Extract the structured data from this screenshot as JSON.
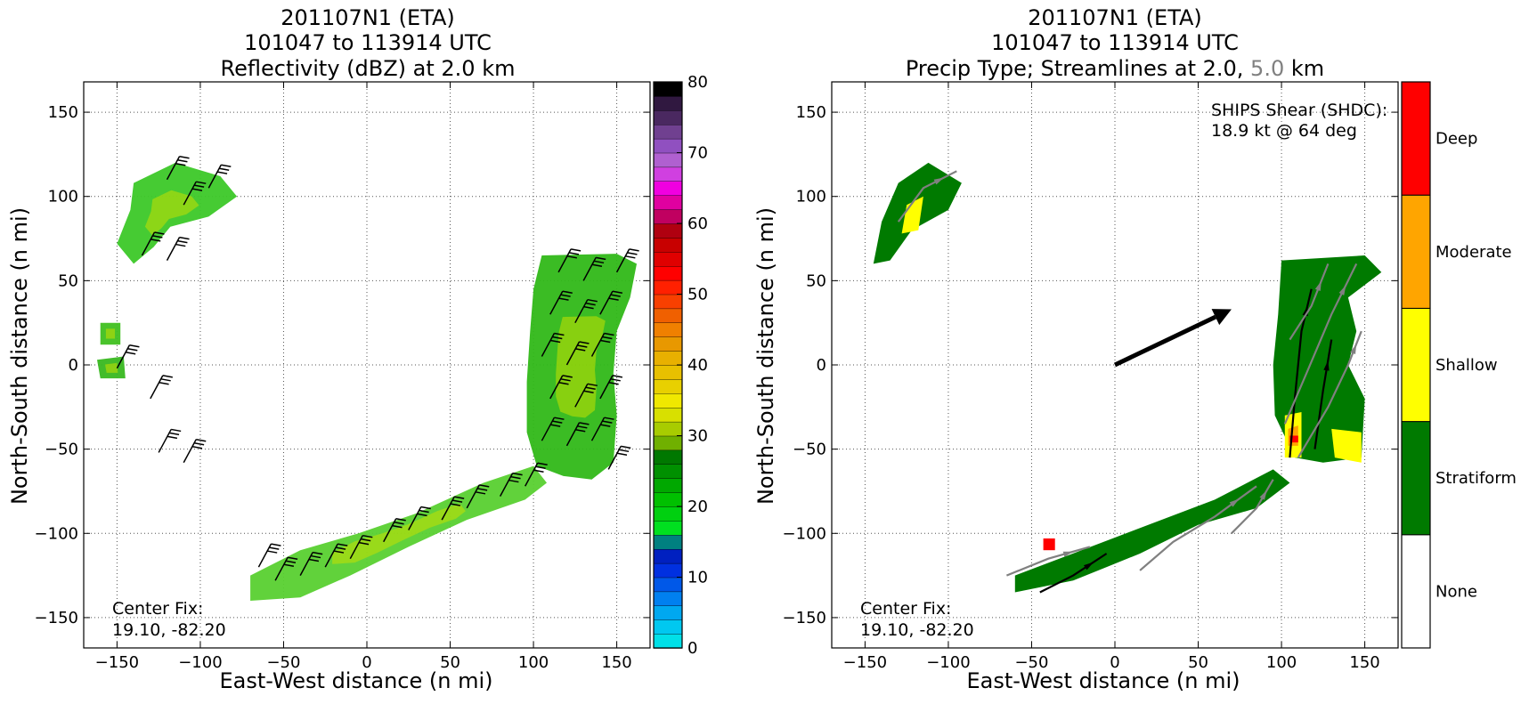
{
  "chart_data": [
    {
      "type": "heatmap",
      "panel": "reflectivity",
      "title_lines": [
        "201107N1 (ETA)",
        "101047 to 113914 UTC",
        "Reflectivity (dBZ) at 2.0 km"
      ],
      "xlabel": "East-West distance (n mi)",
      "ylabel": "North-South distance (n mi)",
      "xlim": [
        -170,
        170
      ],
      "ylim": [
        -168,
        168
      ],
      "xticks": [
        -150,
        -100,
        -50,
        0,
        50,
        100,
        150
      ],
      "yticks": [
        -150,
        -100,
        -50,
        0,
        50,
        100,
        150
      ],
      "grid": true,
      "annotation": [
        "Center Fix:",
        "19.10, -82.20"
      ],
      "colorbar": {
        "vmin": 0,
        "vmax": 80,
        "ticks": [
          0,
          10,
          20,
          30,
          40,
          50,
          60,
          70,
          80
        ],
        "colors": [
          "#00e0e8",
          "#00c8f0",
          "#00a8f0",
          "#0080f0",
          "#0058e8",
          "#0030e0",
          "#0020c0",
          "#008080",
          "#00e020",
          "#00d010",
          "#00c000",
          "#00a800",
          "#009000",
          "#007800",
          "#70b000",
          "#a8cc00",
          "#d8e000",
          "#f0e800",
          "#e8d000",
          "#e8c000",
          "#e8b000",
          "#e89800",
          "#f08000",
          "#f06000",
          "#f84000",
          "#ff2000",
          "#ff0000",
          "#e00000",
          "#c80000",
          "#b00010",
          "#c00060",
          "#e000a0",
          "#f000e0",
          "#d040e0",
          "#b060d0",
          "#9050c0",
          "#704090",
          "#4a2860",
          "#301840",
          "#000000"
        ]
      },
      "echo_regions": [
        {
          "name": "northwest-band",
          "points": [
            [
              -140,
              108
            ],
            [
              -115,
              120
            ],
            [
              -88,
              112
            ],
            [
              -78,
              100
            ],
            [
              -95,
              88
            ],
            [
              -118,
              82
            ],
            [
              -128,
              70
            ],
            [
              -140,
              60
            ],
            [
              -150,
              72
            ],
            [
              -142,
              92
            ]
          ]
        },
        {
          "name": "eyewall-east",
          "points": [
            [
              105,
              65
            ],
            [
              150,
              66
            ],
            [
              162,
              60
            ],
            [
              158,
              40
            ],
            [
              150,
              20
            ],
            [
              148,
              -5
            ],
            [
              150,
              -30
            ],
            [
              148,
              -58
            ],
            [
              135,
              -68
            ],
            [
              118,
              -66
            ],
            [
              102,
              -60
            ],
            [
              96,
              -40
            ],
            [
              96,
              -10
            ],
            [
              98,
              20
            ],
            [
              100,
              45
            ]
          ]
        },
        {
          "name": "southern-band",
          "points": [
            [
              -70,
              -125
            ],
            [
              -40,
              -110
            ],
            [
              -5,
              -100
            ],
            [
              30,
              -88
            ],
            [
              70,
              -70
            ],
            [
              100,
              -60
            ],
            [
              108,
              -70
            ],
            [
              95,
              -80
            ],
            [
              60,
              -92
            ],
            [
              25,
              -108
            ],
            [
              -10,
              -125
            ],
            [
              -40,
              -138
            ],
            [
              -70,
              -140
            ]
          ]
        },
        {
          "name": "west-fragment-1",
          "points": [
            [
              -160,
              25
            ],
            [
              -148,
              25
            ],
            [
              -148,
              12
            ],
            [
              -160,
              12
            ]
          ]
        },
        {
          "name": "west-fragment-2",
          "points": [
            [
              -162,
              3
            ],
            [
              -146,
              5
            ],
            [
              -145,
              -8
            ],
            [
              -160,
              -8
            ]
          ]
        }
      ],
      "wind_barbs": [
        {
          "x": -120,
          "y": 110
        },
        {
          "x": -95,
          "y": 105
        },
        {
          "x": -110,
          "y": 95
        },
        {
          "x": -135,
          "y": 65
        },
        {
          "x": -120,
          "y": 62
        },
        {
          "x": -150,
          "y": -2
        },
        {
          "x": -130,
          "y": -20
        },
        {
          "x": -125,
          "y": -52
        },
        {
          "x": -110,
          "y": -58
        },
        {
          "x": 115,
          "y": 55
        },
        {
          "x": 130,
          "y": 50
        },
        {
          "x": 150,
          "y": 55
        },
        {
          "x": 110,
          "y": 30
        },
        {
          "x": 125,
          "y": 25
        },
        {
          "x": 140,
          "y": 30
        },
        {
          "x": 105,
          "y": 5
        },
        {
          "x": 120,
          "y": 0
        },
        {
          "x": 135,
          "y": 5
        },
        {
          "x": 110,
          "y": -20
        },
        {
          "x": 125,
          "y": -25
        },
        {
          "x": 140,
          "y": -20
        },
        {
          "x": 105,
          "y": -45
        },
        {
          "x": 120,
          "y": -48
        },
        {
          "x": 135,
          "y": -45
        },
        {
          "x": 145,
          "y": -62
        },
        {
          "x": 95,
          "y": -72
        },
        {
          "x": 80,
          "y": -78
        },
        {
          "x": 60,
          "y": -85
        },
        {
          "x": 45,
          "y": -92
        },
        {
          "x": 25,
          "y": -98
        },
        {
          "x": 10,
          "y": -105
        },
        {
          "x": -10,
          "y": -115
        },
        {
          "x": -25,
          "y": -120
        },
        {
          "x": -40,
          "y": -125
        },
        {
          "x": -55,
          "y": -128
        },
        {
          "x": -65,
          "y": -120
        }
      ]
    },
    {
      "type": "heatmap",
      "panel": "precip-type",
      "title_lines": [
        "201107N1 (ETA)",
        "101047 to 113914 UTC"
      ],
      "title_line3_parts": [
        "Precip Type; Streamlines at 2.0, ",
        "5.0",
        " km"
      ],
      "xlabel": "East-West distance (n mi)",
      "ylabel": "North-South distance (n mi)",
      "xlim": [
        -170,
        170
      ],
      "ylim": [
        -168,
        168
      ],
      "xticks": [
        -150,
        -100,
        -50,
        0,
        50,
        100,
        150
      ],
      "yticks": [
        -150,
        -100,
        -50,
        0,
        50,
        100,
        150
      ],
      "grid": true,
      "annotation": [
        "Center Fix:",
        "19.10, -82.20"
      ],
      "shear_label": [
        "SHIPS Shear (SHDC):",
        "18.9 kt @ 64 deg"
      ],
      "shear_vector": {
        "from": [
          0,
          0
        ],
        "to": [
          70,
          33
        ]
      },
      "categories": [
        "None",
        "Stratiform",
        "Shallow",
        "Moderate",
        "Deep"
      ],
      "category_colors": [
        "#ffffff",
        "#007a00",
        "#ffff00",
        "#ffa500",
        "#ff0000"
      ],
      "precip_regions": [
        {
          "category": "Stratiform",
          "points": [
            [
              -130,
              108
            ],
            [
              -112,
              120
            ],
            [
              -92,
              108
            ],
            [
              -100,
              92
            ],
            [
              -122,
              80
            ],
            [
              -135,
              62
            ],
            [
              -145,
              60
            ],
            [
              -140,
              85
            ]
          ]
        },
        {
          "category": "Stratiform",
          "points": [
            [
              100,
              62
            ],
            [
              150,
              65
            ],
            [
              160,
              55
            ],
            [
              140,
              40
            ],
            [
              145,
              20
            ],
            [
              140,
              0
            ],
            [
              150,
              -20
            ],
            [
              148,
              -55
            ],
            [
              125,
              -58
            ],
            [
              108,
              -55
            ],
            [
              96,
              -30
            ],
            [
              95,
              0
            ],
            [
              98,
              30
            ]
          ]
        },
        {
          "category": "Stratiform",
          "points": [
            [
              -60,
              -125
            ],
            [
              -20,
              -110
            ],
            [
              20,
              -95
            ],
            [
              60,
              -80
            ],
            [
              95,
              -62
            ],
            [
              105,
              -70
            ],
            [
              85,
              -85
            ],
            [
              50,
              -95
            ],
            [
              15,
              -112
            ],
            [
              -25,
              -128
            ],
            [
              -60,
              -135
            ]
          ]
        },
        {
          "category": "Shallow",
          "points": [
            [
              -125,
              95
            ],
            [
              -115,
              100
            ],
            [
              -118,
              80
            ],
            [
              -128,
              78
            ]
          ]
        },
        {
          "category": "Shallow",
          "points": [
            [
              102,
              -30
            ],
            [
              112,
              -28
            ],
            [
              112,
              -55
            ],
            [
              102,
              -55
            ]
          ]
        },
        {
          "category": "Shallow",
          "points": [
            [
              130,
              -38
            ],
            [
              148,
              -40
            ],
            [
              148,
              -58
            ],
            [
              132,
              -55
            ]
          ]
        },
        {
          "category": "Moderate",
          "points": [
            [
              104,
              -38
            ],
            [
              110,
              -36
            ],
            [
              110,
              -48
            ],
            [
              104,
              -48
            ]
          ]
        },
        {
          "category": "Deep",
          "points": [
            [
              -43,
              -103
            ],
            [
              -36,
              -103
            ],
            [
              -36,
              -110
            ],
            [
              -43,
              -110
            ]
          ]
        },
        {
          "category": "Deep",
          "points": [
            [
              105,
              -42
            ],
            [
              110,
              -42
            ],
            [
              110,
              -46
            ],
            [
              105,
              -46
            ]
          ]
        }
      ],
      "streamlines": [
        {
          "level": "2.0",
          "points": [
            [
              105,
              -55
            ],
            [
              108,
              -20
            ],
            [
              112,
              20
            ],
            [
              118,
              45
            ]
          ]
        },
        {
          "level": "2.0",
          "points": [
            [
              120,
              -50
            ],
            [
              125,
              -15
            ],
            [
              130,
              15
            ]
          ]
        },
        {
          "level": "2.0",
          "points": [
            [
              -45,
              -135
            ],
            [
              -25,
              -125
            ],
            [
              -5,
              -112
            ]
          ]
        },
        {
          "level": "5.0",
          "points": [
            [
              102,
              -35
            ],
            [
              115,
              -5
            ],
            [
              130,
              30
            ],
            [
              145,
              60
            ]
          ]
        },
        {
          "level": "5.0",
          "points": [
            [
              110,
              -55
            ],
            [
              128,
              -25
            ],
            [
              140,
              0
            ],
            [
              148,
              20
            ]
          ]
        },
        {
          "level": "5.0",
          "points": [
            [
              105,
              15
            ],
            [
              118,
              35
            ],
            [
              128,
              60
            ]
          ]
        },
        {
          "level": "5.0",
          "points": [
            [
              -65,
              -125
            ],
            [
              -40,
              -115
            ],
            [
              -15,
              -108
            ]
          ]
        },
        {
          "level": "5.0",
          "points": [
            [
              15,
              -122
            ],
            [
              35,
              -105
            ],
            [
              60,
              -90
            ],
            [
              85,
              -72
            ]
          ]
        },
        {
          "level": "5.0",
          "points": [
            [
              70,
              -100
            ],
            [
              85,
              -85
            ],
            [
              95,
              -68
            ]
          ]
        },
        {
          "level": "5.0",
          "points": [
            [
              -130,
              85
            ],
            [
              -115,
              105
            ],
            [
              -95,
              115
            ]
          ]
        }
      ]
    }
  ]
}
